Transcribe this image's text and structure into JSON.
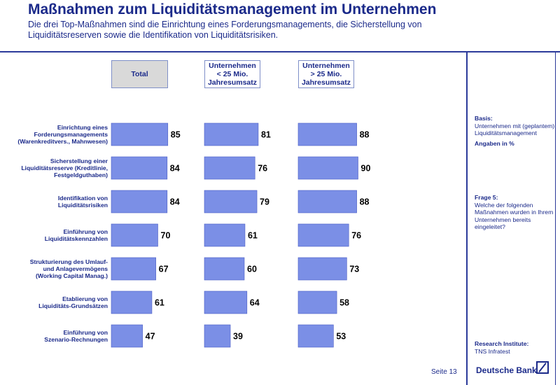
{
  "header": {
    "title": "Maßnahmen zum Liquiditätsmanagement im Unternehmen",
    "subtitle": "Die drei Top-Maßnahmen sind die Einrichtung eines Forderungsmanagements, die Sicherstellung von Liquiditätsreserven sowie die Identifikation von Liquiditätsrisiken."
  },
  "colors": {
    "bar": "#7b8fe6",
    "bar_border": "#4a5cc4",
    "heading": "#1b2a8a"
  },
  "chart_data": {
    "type": "bar",
    "orientation": "horizontal",
    "unit": "%",
    "xlim": [
      0,
      100
    ],
    "grid": false,
    "legend": "none",
    "categories": [
      "Einrichtung eines\nForderungsmanagements\n(Warenkreditvers., Mahnwesen)",
      "Sicherstellung einer\nLiquiditätsreserve (Kreditlinie,\nFestgeldguthaben)",
      "Identifikation von\nLiquiditätsrisiken",
      "Einführung von\nLiquiditätskennzahlen",
      "Strukturierung des Umlauf-\nund Anlagevermögens\n(Working Capital Manag.)",
      "Etablierung von\nLiquiditäts-Grundsätzen",
      "Einführung von\nSzenario-Rechnungen"
    ],
    "series": [
      {
        "name": "Total",
        "values": [
          85,
          84,
          84,
          70,
          67,
          61,
          47
        ]
      },
      {
        "name": "Unternehmen\n< 25 Mio.\nJahresumsatz",
        "values": [
          81,
          76,
          79,
          61,
          60,
          64,
          39
        ]
      },
      {
        "name": "Unternehmen\n> 25 Mio.\nJahresumsatz",
        "values": [
          88,
          90,
          88,
          76,
          73,
          58,
          53
        ]
      }
    ]
  },
  "sidebar": {
    "basis_label": "Basis:",
    "basis_text": "Unternehmen mit (geplantem)\nLiquiditätsmanagement",
    "unit_note": "Angaben in %",
    "question_label": "Frage 5:",
    "question_text": "Welche der folgenden\nMaßnahmen wurden in Ihrem\nUnternehmen bereits\neingeleitet?",
    "institute_label": "Research Institute:",
    "institute_name": "TNS Infratest"
  },
  "footer": {
    "page": "Seite 13",
    "brand": "Deutsche Bank"
  }
}
